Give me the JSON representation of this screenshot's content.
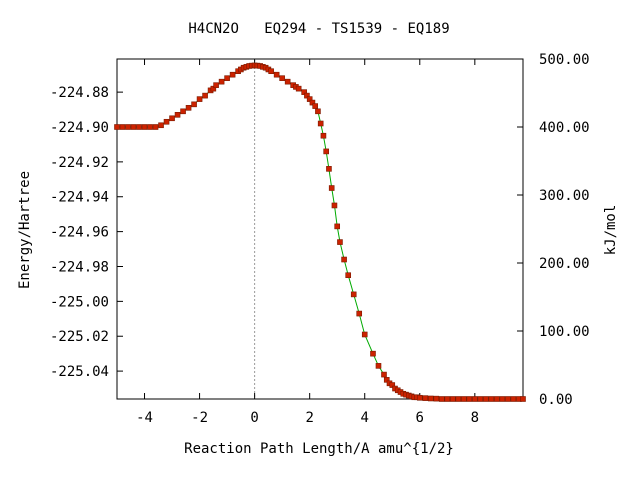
{
  "chart_data": {
    "type": "scatter",
    "title": "H4CN2O   EQ294 - TS1539 - EQ189",
    "xlabel": "Reaction Path Length/A amu^{1/2}",
    "ylabel": "Energy/Hartree",
    "y2label": "kJ/mol",
    "xlim": [
      -5.0,
      9.75
    ],
    "ylim": [
      -225.056,
      -224.861
    ],
    "y2lim": [
      0,
      500
    ],
    "x_ticks": [
      "-4",
      "-2",
      "0",
      "2",
      "4",
      "6",
      "8"
    ],
    "y_ticks": [
      "-224.88",
      "-224.90",
      "-224.92",
      "-224.94",
      "-224.96",
      "-224.98",
      "-225.00",
      "-225.02",
      "-225.04"
    ],
    "y2_ticks": [
      "500.00",
      "400.00",
      "300.00",
      "200.00",
      "100.00",
      "0.00"
    ],
    "ts_marker_x": 0.0,
    "grid": false,
    "legend": "none",
    "colors": {
      "points": "#cc2200",
      "line": "#00aa00",
      "ts_line": "#999999"
    },
    "series": [
      {
        "x": [
          -5.0,
          -4.8,
          -4.6,
          -4.4,
          -4.2,
          -4.0,
          -3.8,
          -3.6,
          -3.4,
          -3.2,
          -3.0,
          -2.8,
          -2.6,
          -2.4,
          -2.2,
          -2.0,
          -1.8,
          -1.6,
          -1.5,
          -1.4,
          -1.2,
          -1.0,
          -0.8,
          -0.6,
          -0.5,
          -0.4,
          -0.3,
          -0.2,
          -0.1,
          0.0,
          0.1,
          0.2,
          0.3,
          0.4,
          0.5,
          0.6,
          0.8,
          1.0,
          1.2,
          1.4,
          1.5,
          1.6,
          1.8,
          1.9,
          2.0,
          2.1,
          2.2,
          2.3,
          2.4,
          2.5,
          2.6,
          2.7,
          2.8,
          2.9,
          3.0,
          3.1,
          3.25,
          3.4,
          3.6,
          3.8,
          4.0,
          4.3,
          4.5,
          4.7,
          4.8,
          4.9,
          5.0,
          5.1,
          5.2,
          5.3,
          5.4,
          5.5,
          5.6,
          5.7,
          5.8,
          5.9,
          6.0,
          6.2,
          6.4,
          6.6,
          6.8,
          7.0,
          7.2,
          7.4,
          7.6,
          7.8,
          8.0,
          8.2,
          8.4,
          8.6,
          8.8,
          9.0,
          9.2,
          9.4,
          9.6,
          9.75
        ],
        "y": [
          -224.9,
          -224.9,
          -224.9,
          -224.9,
          -224.9,
          -224.9,
          -224.9,
          -224.9,
          -224.899,
          -224.897,
          -224.895,
          -224.893,
          -224.891,
          -224.889,
          -224.887,
          -224.884,
          -224.882,
          -224.879,
          -224.878,
          -224.876,
          -224.874,
          -224.872,
          -224.87,
          -224.868,
          -224.867,
          -224.866,
          -224.8655,
          -224.865,
          -224.8648,
          -224.8647,
          -224.8648,
          -224.865,
          -224.8655,
          -224.866,
          -224.867,
          -224.868,
          -224.87,
          -224.872,
          -224.874,
          -224.876,
          -224.877,
          -224.878,
          -224.88,
          -224.882,
          -224.884,
          -224.886,
          -224.888,
          -224.891,
          -224.898,
          -224.905,
          -224.914,
          -224.924,
          -224.935,
          -224.945,
          -224.957,
          -224.966,
          -224.976,
          -224.985,
          -224.996,
          -225.007,
          -225.019,
          -225.03,
          -225.037,
          -225.042,
          -225.045,
          -225.047,
          -225.048,
          -225.05,
          -225.051,
          -225.052,
          -225.053,
          -225.0535,
          -225.054,
          -225.0545,
          -225.055,
          -225.055,
          -225.0553,
          -225.0555,
          -225.0557,
          -225.0558,
          -225.056,
          -225.056,
          -225.056,
          -225.056,
          -225.056,
          -225.056,
          -225.056,
          -225.056,
          -225.056,
          -225.056,
          -225.056,
          -225.056,
          -225.056,
          -225.056,
          -225.056,
          -225.056
        ]
      }
    ]
  }
}
